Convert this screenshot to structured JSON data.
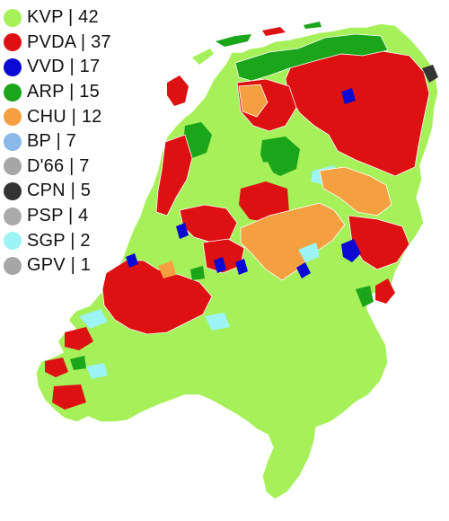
{
  "legend": [
    {
      "party": "KVP",
      "seats": "42",
      "label": "KVP | 42",
      "color": "#a6f05a"
    },
    {
      "party": "PVDA",
      "seats": "37",
      "label": "PVDA | 37",
      "color": "#dd1111"
    },
    {
      "party": "VVD",
      "seats": "17",
      "label": "VVD | 17",
      "color": "#0a0ad4"
    },
    {
      "party": "ARP",
      "seats": "15",
      "label": "ARP | 15",
      "color": "#1aa51a"
    },
    {
      "party": "CHU",
      "seats": "12",
      "label": "CHU | 12",
      "color": "#f4a040"
    },
    {
      "party": "BP",
      "seats": "7",
      "label": "BP | 7",
      "color": "#8ab8e8"
    },
    {
      "party": "D'66",
      "seats": "7",
      "label": "D'66 | 7",
      "color": "#a6a6a6"
    },
    {
      "party": "CPN",
      "seats": "5",
      "label": "CPN | 5",
      "color": "#333333"
    },
    {
      "party": "PSP",
      "seats": "4",
      "label": "PSP | 4",
      "color": "#aaaaaa"
    },
    {
      "party": "SGP",
      "seats": "2",
      "label": "SGP | 2",
      "color": "#9cf4f4"
    },
    {
      "party": "GPV",
      "seats": "1",
      "label": "GPV | 1",
      "color": "#a6a6a6"
    }
  ],
  "map": {
    "background": "#ffffff",
    "border_color": "#ffffff",
    "default_fill": "#a6f05a"
  }
}
